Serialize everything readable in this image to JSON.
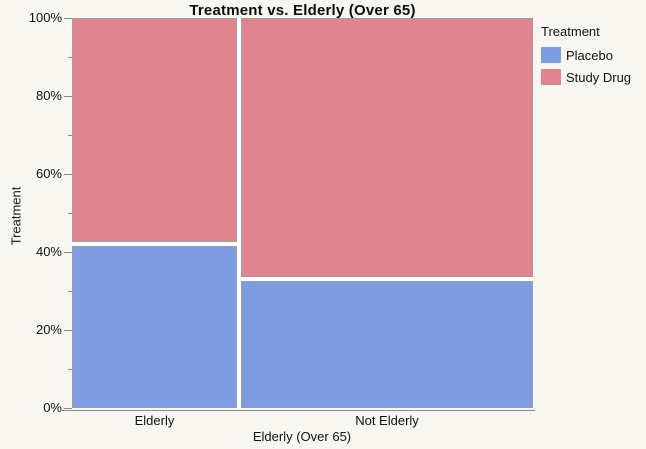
{
  "title": "Treatment vs. Elderly (Over 65)",
  "colors": {
    "background": "#f7f6f0",
    "plot_background": "#ffffff",
    "placebo": "#7f9ce3",
    "study_drug": "#e08490",
    "segment_border": "#9e9e9e",
    "axis_line": "#8a8a8a",
    "text": "#111111"
  },
  "legend": {
    "title": "Treatment",
    "items": [
      {
        "label": "Placebo",
        "color": "#7f9ce3"
      },
      {
        "label": "Study Drug",
        "color": "#e08490"
      }
    ]
  },
  "chart_data": {
    "type": "mosaic",
    "title": "Treatment vs. Elderly (Over 65)",
    "xlabel": "Elderly (Over 65)",
    "ylabel": "Treatment",
    "categories": [
      "Elderly",
      "Not Elderly"
    ],
    "category_width_pct": [
      36,
      64
    ],
    "series": [
      {
        "name": "Placebo",
        "values": [
          42,
          33
        ],
        "color": "#7f9ce3"
      },
      {
        "name": "Study Drug",
        "values": [
          58,
          67
        ],
        "color": "#e08490"
      }
    ],
    "stack_order_bottom_to_top": [
      "Placebo",
      "Study Drug"
    ],
    "ylim": [
      0,
      100
    ],
    "y_major_ticks": [
      "0%",
      "20%",
      "40%",
      "60%",
      "80%",
      "100%"
    ],
    "y_major_tick_step_pct": 20,
    "y_minor_tick_step_pct": 10,
    "grid": false,
    "legend_position": "top-right"
  }
}
